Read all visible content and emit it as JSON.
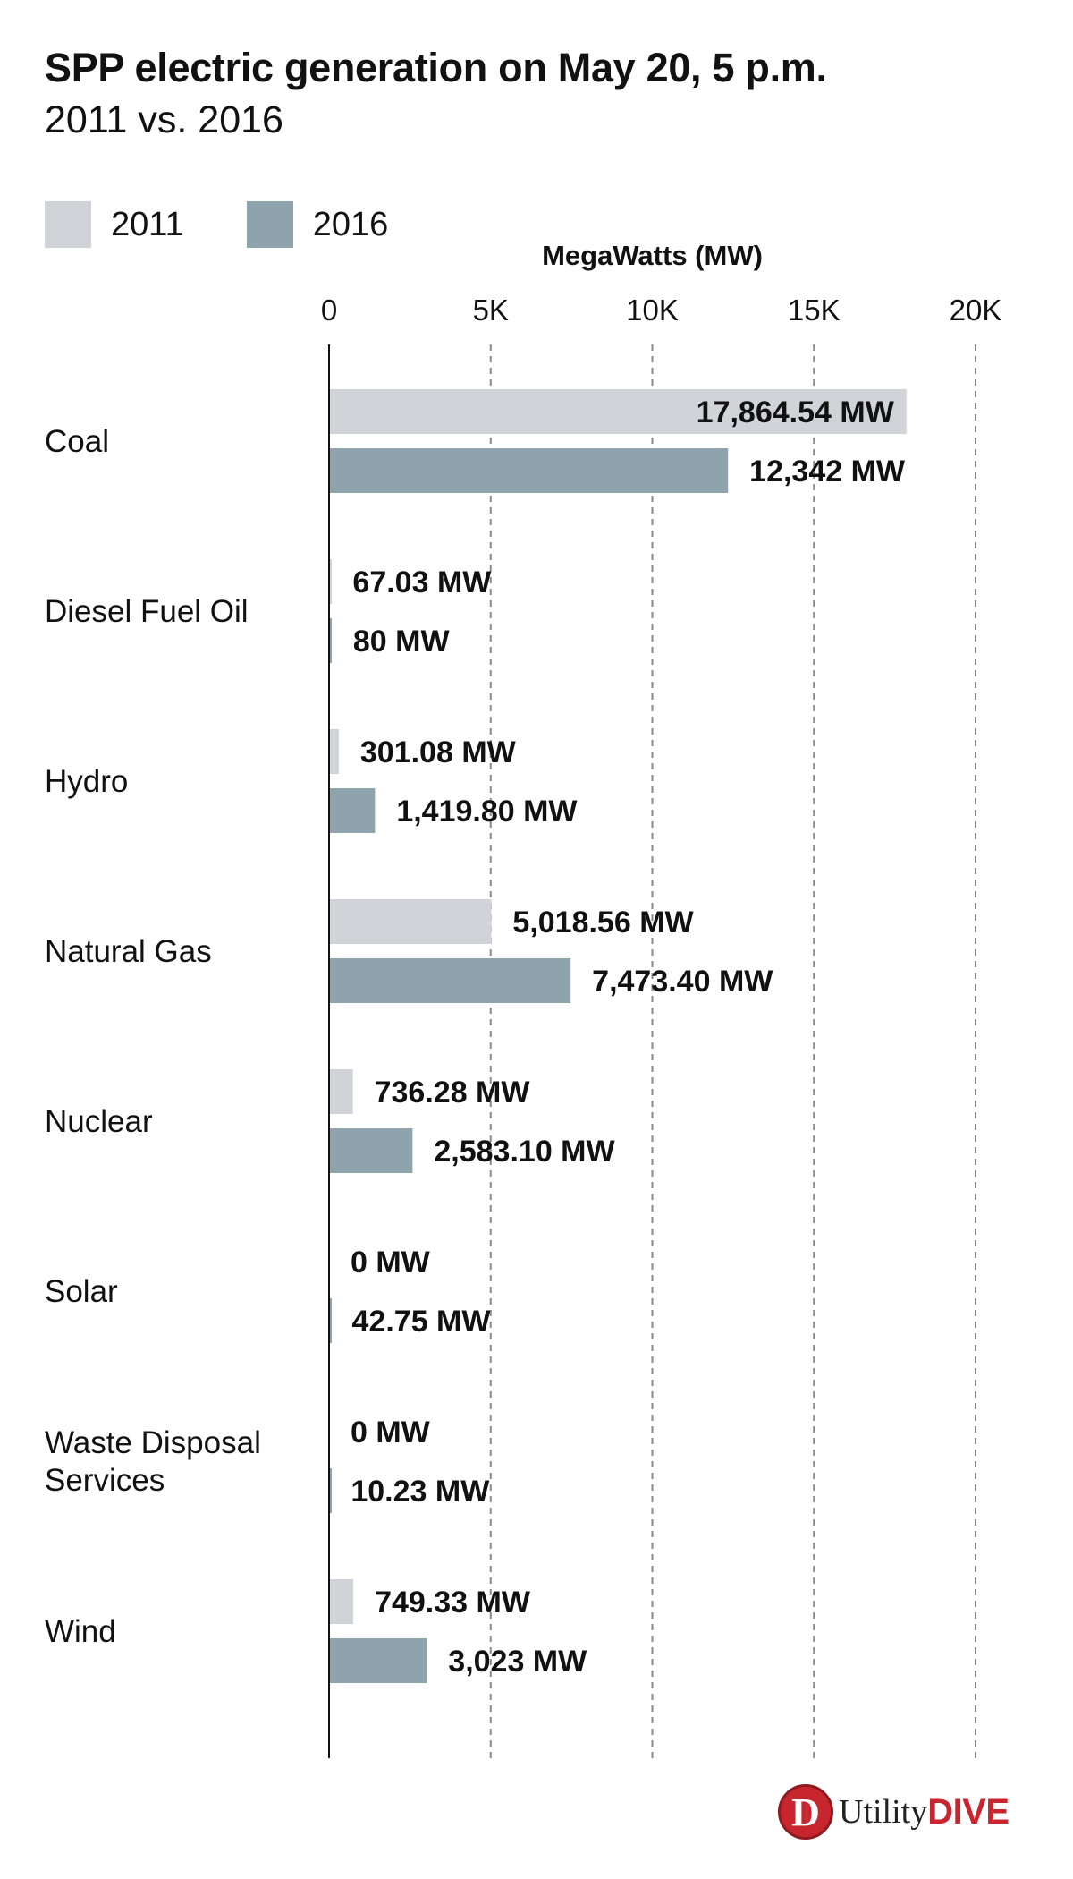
{
  "chart_data": {
    "type": "bar",
    "orientation": "horizontal",
    "title": "SPP electric generation on May 20, 5 p.m.",
    "subtitle": "2011 vs. 2016",
    "xlabel": "MegaWatts (MW)",
    "xlim": [
      0,
      20000
    ],
    "xticks": [
      0,
      5000,
      10000,
      15000,
      20000
    ],
    "xtick_labels": [
      "0",
      "5K",
      "10K",
      "15K",
      "20K"
    ],
    "grid": "dashed vertical",
    "legend_placement": "top-left",
    "categories": [
      "Coal",
      "Diesel Fuel Oil",
      "Hydro",
      "Natural Gas",
      "Nuclear",
      "Solar",
      "Waste Disposal Services",
      "Wind"
    ],
    "category_display": [
      [
        "Coal"
      ],
      [
        "Diesel Fuel Oil"
      ],
      [
        "Hydro"
      ],
      [
        "Natural Gas"
      ],
      [
        "Nuclear"
      ],
      [
        "Solar"
      ],
      [
        "Waste Disposal",
        "Services"
      ],
      [
        "Wind"
      ]
    ],
    "series": [
      {
        "name": "2011",
        "color": "#d0d4d8",
        "values": [
          17864.54,
          67.03,
          301.08,
          5018.56,
          736.28,
          0,
          0,
          749.33
        ],
        "labels": [
          "17,864.54 MW",
          "67.03 MW",
          "301.08 MW",
          "5,018.56 MW",
          "736.28 MW",
          "0 MW",
          "0 MW",
          "749.33 MW"
        ]
      },
      {
        "name": "2016",
        "color": "#8fa3ac",
        "values": [
          12342,
          80,
          1419.8,
          7473.4,
          2583.1,
          42.75,
          10.23,
          3023
        ],
        "labels": [
          "12,342 MW",
          "80 MW",
          "1,419.80 MW",
          "7,473.40 MW",
          "2,583.10 MW",
          "42.75 MW",
          "10.23 MW",
          "3,023 MW"
        ]
      }
    ]
  },
  "branding": {
    "logo_letter": "D",
    "logo_word": "Utility",
    "logo_accent": "DIVE",
    "accent_color": "#c8262e"
  }
}
